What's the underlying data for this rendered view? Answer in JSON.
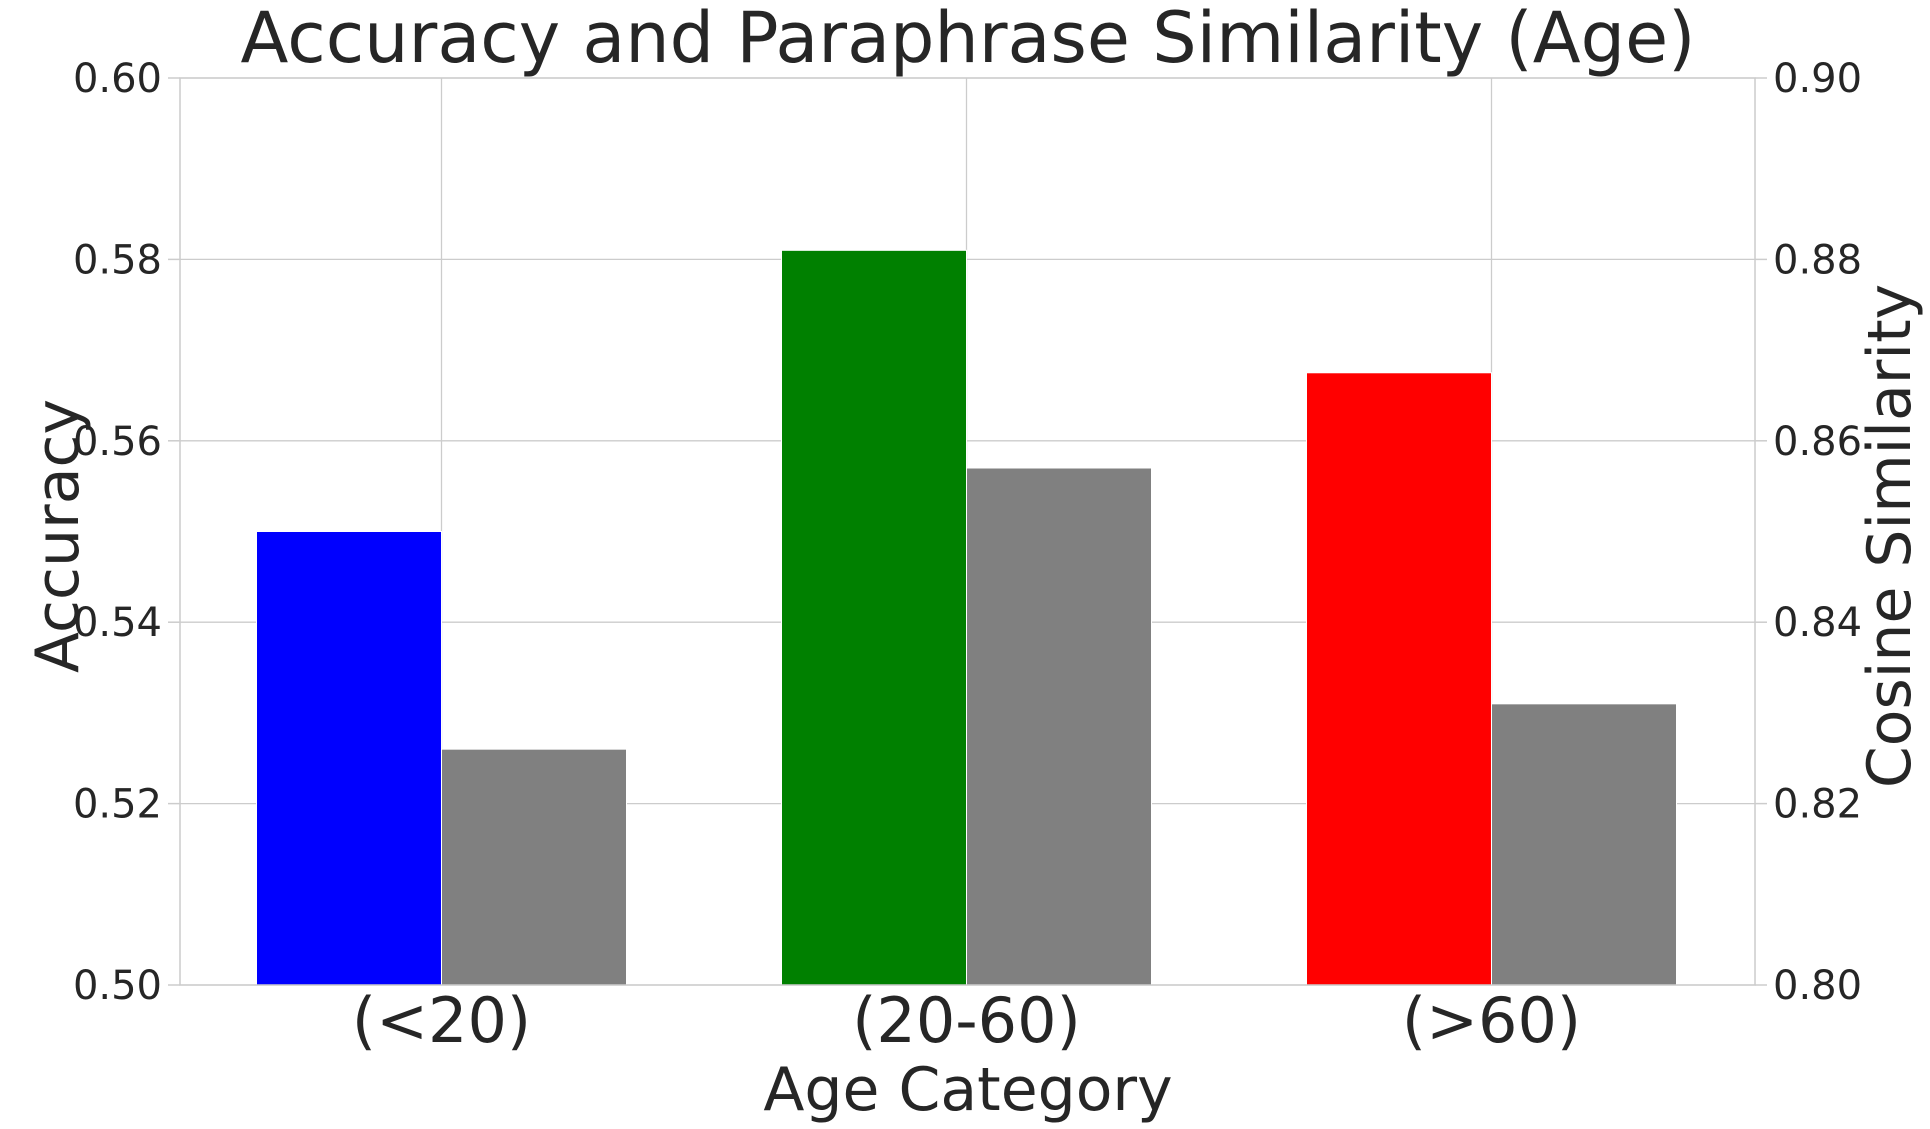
{
  "chart_data": {
    "type": "bar",
    "title": "Accuracy and Paraphrase Similarity (Age)",
    "xlabel": "Age Category",
    "ylabel": "Accuracy",
    "ylabel_right": "Cosine Similarity",
    "categories": [
      "(<20)",
      "(20-60)",
      "(>60)"
    ],
    "series": [
      {
        "axis": "left",
        "values": [
          0.55,
          0.581,
          0.5675
        ],
        "colors": [
          "#0000ff",
          "#008000",
          "#ff0000"
        ]
      },
      {
        "axis": "right",
        "values": [
          0.826,
          0.857,
          0.831
        ],
        "colors": [
          "#808080",
          "#808080",
          "#808080"
        ]
      }
    ],
    "ylim": [
      0.5,
      0.6
    ],
    "ylim_right": [
      0.8,
      0.9
    ],
    "yticks": [
      "0.50",
      "0.52",
      "0.54",
      "0.56",
      "0.58",
      "0.60"
    ],
    "yticks_right": [
      "0.80",
      "0.82",
      "0.84",
      "0.86",
      "0.88",
      "0.90"
    ],
    "grid": true,
    "legend": "none"
  }
}
